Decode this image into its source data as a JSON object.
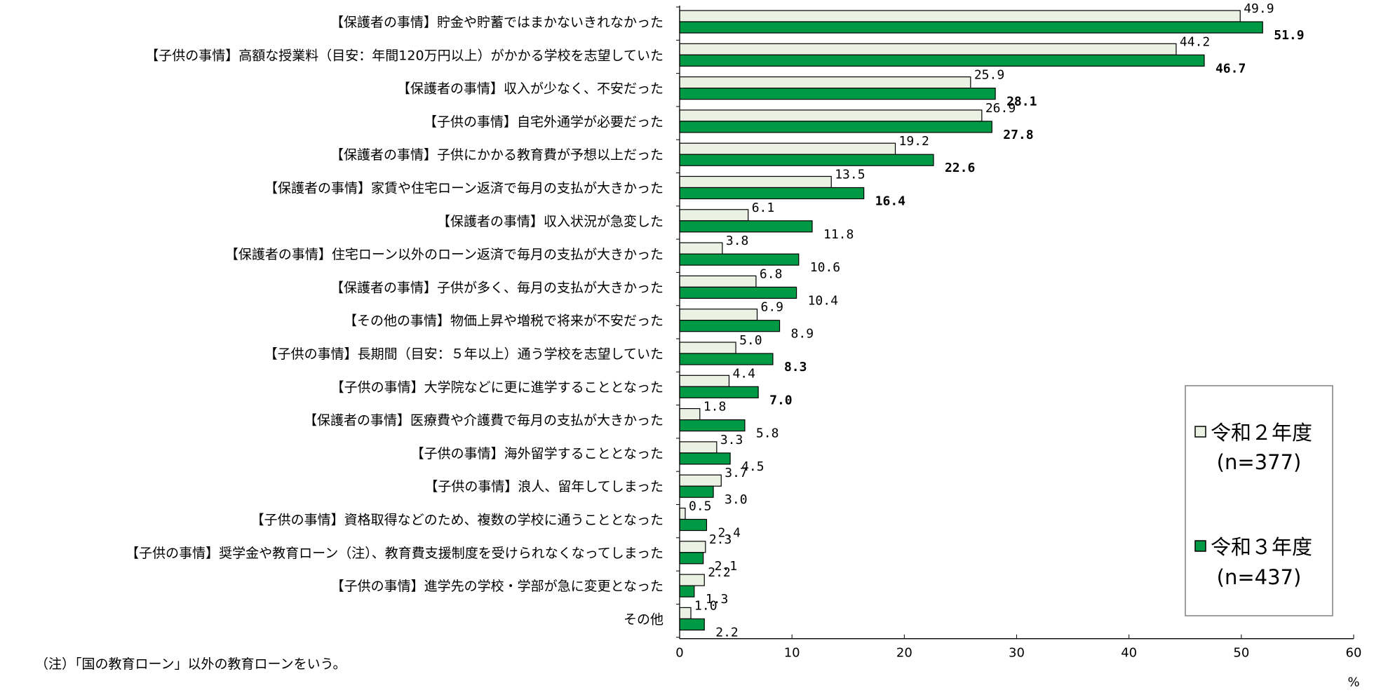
{
  "chart_data": {
    "type": "bar",
    "orientation": "horizontal",
    "categories": [
      "【保護者の事情】貯金や貯蓄ではまかないきれなかった",
      "【子供の事情】高額な授業料（目安：年間120万円以上）がかかる学校を志望していた",
      "【保護者の事情】収入が少なく、不安だった",
      "【子供の事情】自宅外通学が必要だった",
      "【保護者の事情】子供にかかる教育費が予想以上だった",
      "【保護者の事情】家賃や住宅ローン返済で毎月の支払が大きかった",
      "【保護者の事情】収入状況が急変した",
      "【保護者の事情】住宅ローン以外のローン返済で毎月の支払が大きかった",
      "【保護者の事情】子供が多く、毎月の支払が大きかった",
      "【その他の事情】物価上昇や増税で将来が不安だった",
      "【子供の事情】長期間（目安：５年以上）通う学校を志望していた",
      "【子供の事情】大学院などに更に進学することとなった",
      "【保護者の事情】医療費や介護費で毎月の支払が大きかった",
      "【子供の事情】海外留学することとなった",
      "【子供の事情】浪人、留年してしまった",
      "【子供の事情】資格取得などのため、複数の学校に通うこととなった",
      "【子供の事情】奨学金や教育ローン（注）、教育費支援制度を受けられなくなってしまった",
      "【子供の事情】進学先の学校・学部が急に変更となった",
      "その他"
    ],
    "series": [
      {
        "name": "令和２年度",
        "n_label": "(n=377)",
        "color": "#ebf1e3",
        "values": [
          49.9,
          44.2,
          25.9,
          26.9,
          19.2,
          13.5,
          6.1,
          3.8,
          6.8,
          6.9,
          5.0,
          4.4,
          1.8,
          3.3,
          3.7,
          0.5,
          2.3,
          2.2,
          1.0
        ],
        "labels": [
          "49.9",
          "44.2",
          "25.9",
          "26.9",
          "19.2",
          "13.5",
          "6.1",
          "3.8",
          "6.8",
          "6.9",
          "5.0",
          "4.4",
          "1.8",
          "3.3",
          "3.7",
          "0.5",
          "2.3",
          "2.2",
          "1.0"
        ]
      },
      {
        "name": "令和３年度",
        "n_label": "(n=437)",
        "color": "#009944",
        "values": [
          51.9,
          46.7,
          28.1,
          27.8,
          22.6,
          16.4,
          11.8,
          10.6,
          10.4,
          8.9,
          8.3,
          7.0,
          5.8,
          4.5,
          3.0,
          2.4,
          2.1,
          1.3,
          2.2
        ],
        "labels": [
          "51.9",
          "46.7",
          "28.1",
          "27.8",
          "22.6",
          "16.4",
          "11.8",
          "10.6",
          "10.4",
          "8.9",
          "8.3",
          "7.0",
          "5.8",
          "4.5",
          "3.0",
          "2.4",
          "2.1",
          "1.3",
          "2.2"
        ],
        "bold": [
          true,
          true,
          true,
          true,
          true,
          true,
          false,
          false,
          false,
          false,
          true,
          true,
          false,
          false,
          false,
          false,
          false,
          false,
          false
        ]
      }
    ],
    "x_ticks": [
      0,
      10,
      20,
      30,
      40,
      50,
      60
    ],
    "xlim": [
      0,
      60
    ],
    "x_unit": "%",
    "grid": false,
    "legend_placement": "bottom-right",
    "note": "（注）「国の教育ローン」以外の教育ローンをいう。"
  }
}
